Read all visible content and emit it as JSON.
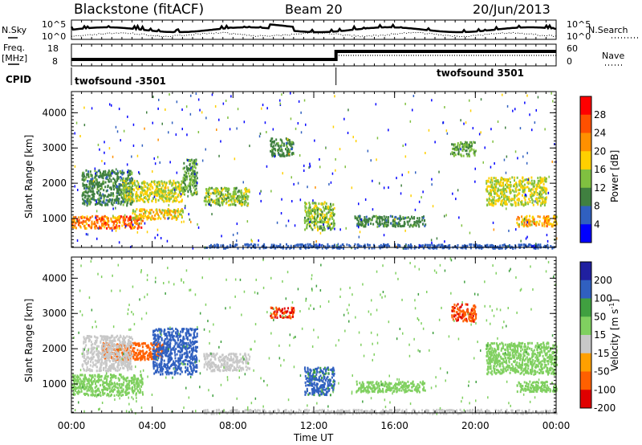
{
  "header": {
    "station": "Blackstone (fitACF)",
    "beam": "Beam 20",
    "date": "20/Jun/2013"
  },
  "summary_panels": {
    "nsky_label": "N.Sky",
    "nsearch_label": "N.Search",
    "noise_ticks_top": "10^5",
    "noise_ticks_bottom": "10^0",
    "freq_label_top": "Freq.",
    "freq_label_bottom": "[MHz]",
    "freq_ticks": [
      "18",
      "8"
    ],
    "nave_label": "Nave",
    "nave_ticks": [
      "60",
      "0"
    ],
    "cpid_label": "CPID",
    "cpid_segments": [
      {
        "name": "twofsound -3501",
        "start_hour": 0,
        "end_hour": 13.1
      },
      {
        "name": "twofsound 3501",
        "start_hour": 13.1,
        "end_hour": 24
      }
    ]
  },
  "x_axis": {
    "label": "Time UT",
    "ticks": [
      "00:00",
      "04:00",
      "08:00",
      "12:00",
      "16:00",
      "20:00",
      "00:00"
    ],
    "range_hours": [
      0,
      24
    ]
  },
  "chart_data": [
    {
      "type": "heatmap",
      "panel": "power",
      "ylabel": "Slant Range [km]",
      "yticks": [
        "1000",
        "2000",
        "3000",
        "4000"
      ],
      "ylim": [
        180,
        4600
      ],
      "colorbar_label": "Power [dB]",
      "colorbar_ticks": [
        "28",
        "24",
        "20",
        "16",
        "12",
        "8",
        "4"
      ],
      "colorbar_colors": [
        "#ff0000",
        "#ff5000",
        "#ff9000",
        "#ffd000",
        "#80c040",
        "#408040",
        "#3060c0",
        "#0000ff"
      ],
      "scatter_regions": [
        {
          "t0": 0.0,
          "t1": 3.5,
          "r0": 750,
          "r1": 1100,
          "level": 24
        },
        {
          "t0": 3.0,
          "t1": 5.5,
          "r0": 1000,
          "r1": 1300,
          "level": 18
        },
        {
          "t0": 0.5,
          "t1": 3.0,
          "r0": 1400,
          "r1": 2400,
          "level": 10
        },
        {
          "t0": 2.5,
          "t1": 5.5,
          "r0": 1500,
          "r1": 2100,
          "level": 16
        },
        {
          "t0": 5.5,
          "t1": 6.2,
          "r0": 1700,
          "r1": 2700,
          "level": 12
        },
        {
          "t0": 6.5,
          "t1": 8.8,
          "r0": 1400,
          "r1": 1900,
          "level": 14
        },
        {
          "t0": 9.8,
          "t1": 11.0,
          "r0": 2800,
          "r1": 3300,
          "level": 10
        },
        {
          "t0": 11.5,
          "t1": 13.0,
          "r0": 700,
          "r1": 1500,
          "level": 14
        },
        {
          "t0": 14.0,
          "t1": 17.5,
          "r0": 800,
          "r1": 1100,
          "level": 10
        },
        {
          "t0": 18.8,
          "t1": 20.0,
          "r0": 2800,
          "r1": 3200,
          "level": 12
        },
        {
          "t0": 20.5,
          "t1": 23.5,
          "r0": 1400,
          "r1": 2200,
          "level": 16
        },
        {
          "t0": 22.0,
          "t1": 24.0,
          "r0": 800,
          "r1": 1100,
          "level": 20
        },
        {
          "t0": 6.5,
          "t1": 24.0,
          "r0": 180,
          "r1": 300,
          "level": 6
        }
      ]
    },
    {
      "type": "heatmap",
      "panel": "velocity",
      "ylabel": "Slant Range [km]",
      "yticks": [
        "1000",
        "2000",
        "3000",
        "4000"
      ],
      "ylim": [
        180,
        4600
      ],
      "colorbar_label": "Velocity [m s^-1]",
      "colorbar_ticks": [
        "200",
        "100",
        "50",
        "15",
        "-15",
        "-50",
        "-100",
        "-200"
      ],
      "colorbar_colors": [
        "#2020a0",
        "#3060c0",
        "#40a040",
        "#80d060",
        "#c8c8c8",
        "#ffa000",
        "#ff6000",
        "#e00000"
      ],
      "scatter_regions": [
        {
          "t0": 0.0,
          "t1": 3.5,
          "r0": 700,
          "r1": 1300,
          "level": 0
        },
        {
          "t0": 1.5,
          "t1": 4.5,
          "r0": 1700,
          "r1": 2200,
          "level": -150
        },
        {
          "t0": 0.5,
          "t1": 3.0,
          "r0": 1400,
          "r1": 2400,
          "level": -40
        },
        {
          "t0": 4.0,
          "t1": 6.2,
          "r0": 1300,
          "r1": 2600,
          "level": 80
        },
        {
          "t0": 6.5,
          "t1": 8.8,
          "r0": 1400,
          "r1": 1900,
          "level": -40
        },
        {
          "t0": 9.8,
          "t1": 11.0,
          "r0": 2900,
          "r1": 3200,
          "level": -200
        },
        {
          "t0": 11.5,
          "t1": 13.0,
          "r0": 700,
          "r1": 1500,
          "level": 60
        },
        {
          "t0": 14.0,
          "t1": 17.5,
          "r0": 800,
          "r1": 1100,
          "level": 0
        },
        {
          "t0": 18.8,
          "t1": 20.0,
          "r0": 2800,
          "r1": 3300,
          "level": -180
        },
        {
          "t0": 20.5,
          "t1": 24.0,
          "r0": 1300,
          "r1": 2200,
          "level": 0
        },
        {
          "t0": 22.0,
          "t1": 24.0,
          "r0": 800,
          "r1": 1100,
          "level": 0
        },
        {
          "t0": 6.5,
          "t1": 24.0,
          "r0": 180,
          "r1": 300,
          "level": -30
        }
      ]
    }
  ]
}
